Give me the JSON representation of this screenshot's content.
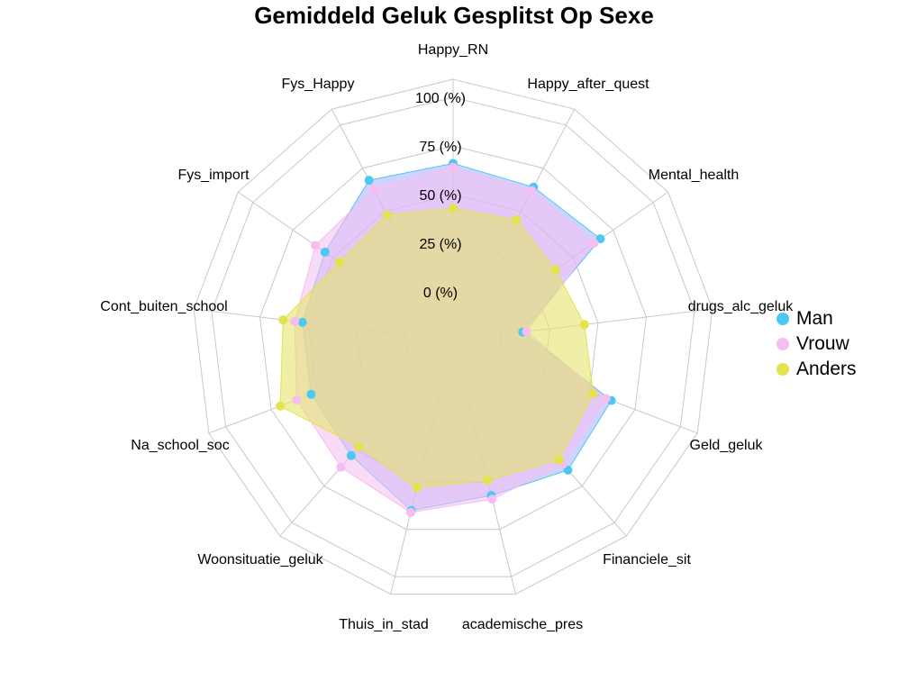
{
  "chart_data": {
    "type": "radar",
    "title": "Gemiddeld Geluk Gesplitst Op Sexe",
    "axes": [
      "Happy_RN",
      "Happy_after_quest",
      "Mental_health",
      "drugs_alc_geluk",
      "Geld_geluk",
      "Financiele_sit",
      "academische_pres",
      "Thuis_in_stad",
      "Woonsituatie_geluk",
      "Na_school_soc",
      "Cont_buiten_school",
      "Fys_import",
      "Fys_Happy"
    ],
    "grid_labels": [
      "0 (%)",
      "25 (%)",
      "50 (%)",
      "75 (%)",
      "100 (%)"
    ],
    "grid_values": [
      0,
      25,
      50,
      75,
      100
    ],
    "range": [
      0,
      100
    ],
    "series": [
      {
        "name": "Man",
        "color": "#4cc9f0",
        "values": [
          66,
          64,
          67,
          11,
          62,
          64,
          57,
          65,
          54,
          53,
          53,
          55,
          68
        ]
      },
      {
        "name": "Vrouw",
        "color": "#f5bdf0",
        "values": [
          64,
          62,
          63,
          13,
          59,
          60,
          59,
          66,
          62,
          61,
          57,
          61,
          63
        ]
      },
      {
        "name": "Anders",
        "color": "#e3e34a",
        "values": [
          43,
          45,
          39,
          43,
          52,
          57,
          49,
          53,
          48,
          70,
          63,
          46,
          48
        ]
      }
    ],
    "legend_position": "right"
  }
}
